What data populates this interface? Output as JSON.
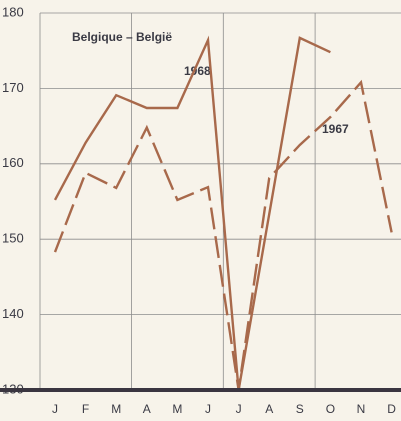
{
  "chart_data": {
    "type": "line",
    "title": "Belgique – België",
    "categories": [
      "J",
      "F",
      "M",
      "A",
      "M",
      "J",
      "J",
      "A",
      "S",
      "O",
      "N",
      "D"
    ],
    "series": [
      {
        "name": "1968",
        "color": "#a8694b",
        "dashed": false,
        "values": [
          155.2,
          162.8,
          169.1,
          167.4,
          167.4,
          176.4,
          130,
          153.3,
          176.7,
          174.8,
          null,
          null
        ]
      },
      {
        "name": "1967",
        "color": "#a8694b",
        "dashed": true,
        "values": [
          148.3,
          158.8,
          156.8,
          164.8,
          155.2,
          156.9,
          130,
          158.1,
          162.5,
          166.2,
          170.8,
          150.9
        ]
      }
    ],
    "ylim": [
      130,
      180
    ],
    "yticks": [
      130,
      140,
      150,
      160,
      170,
      180
    ],
    "grid": true
  }
}
